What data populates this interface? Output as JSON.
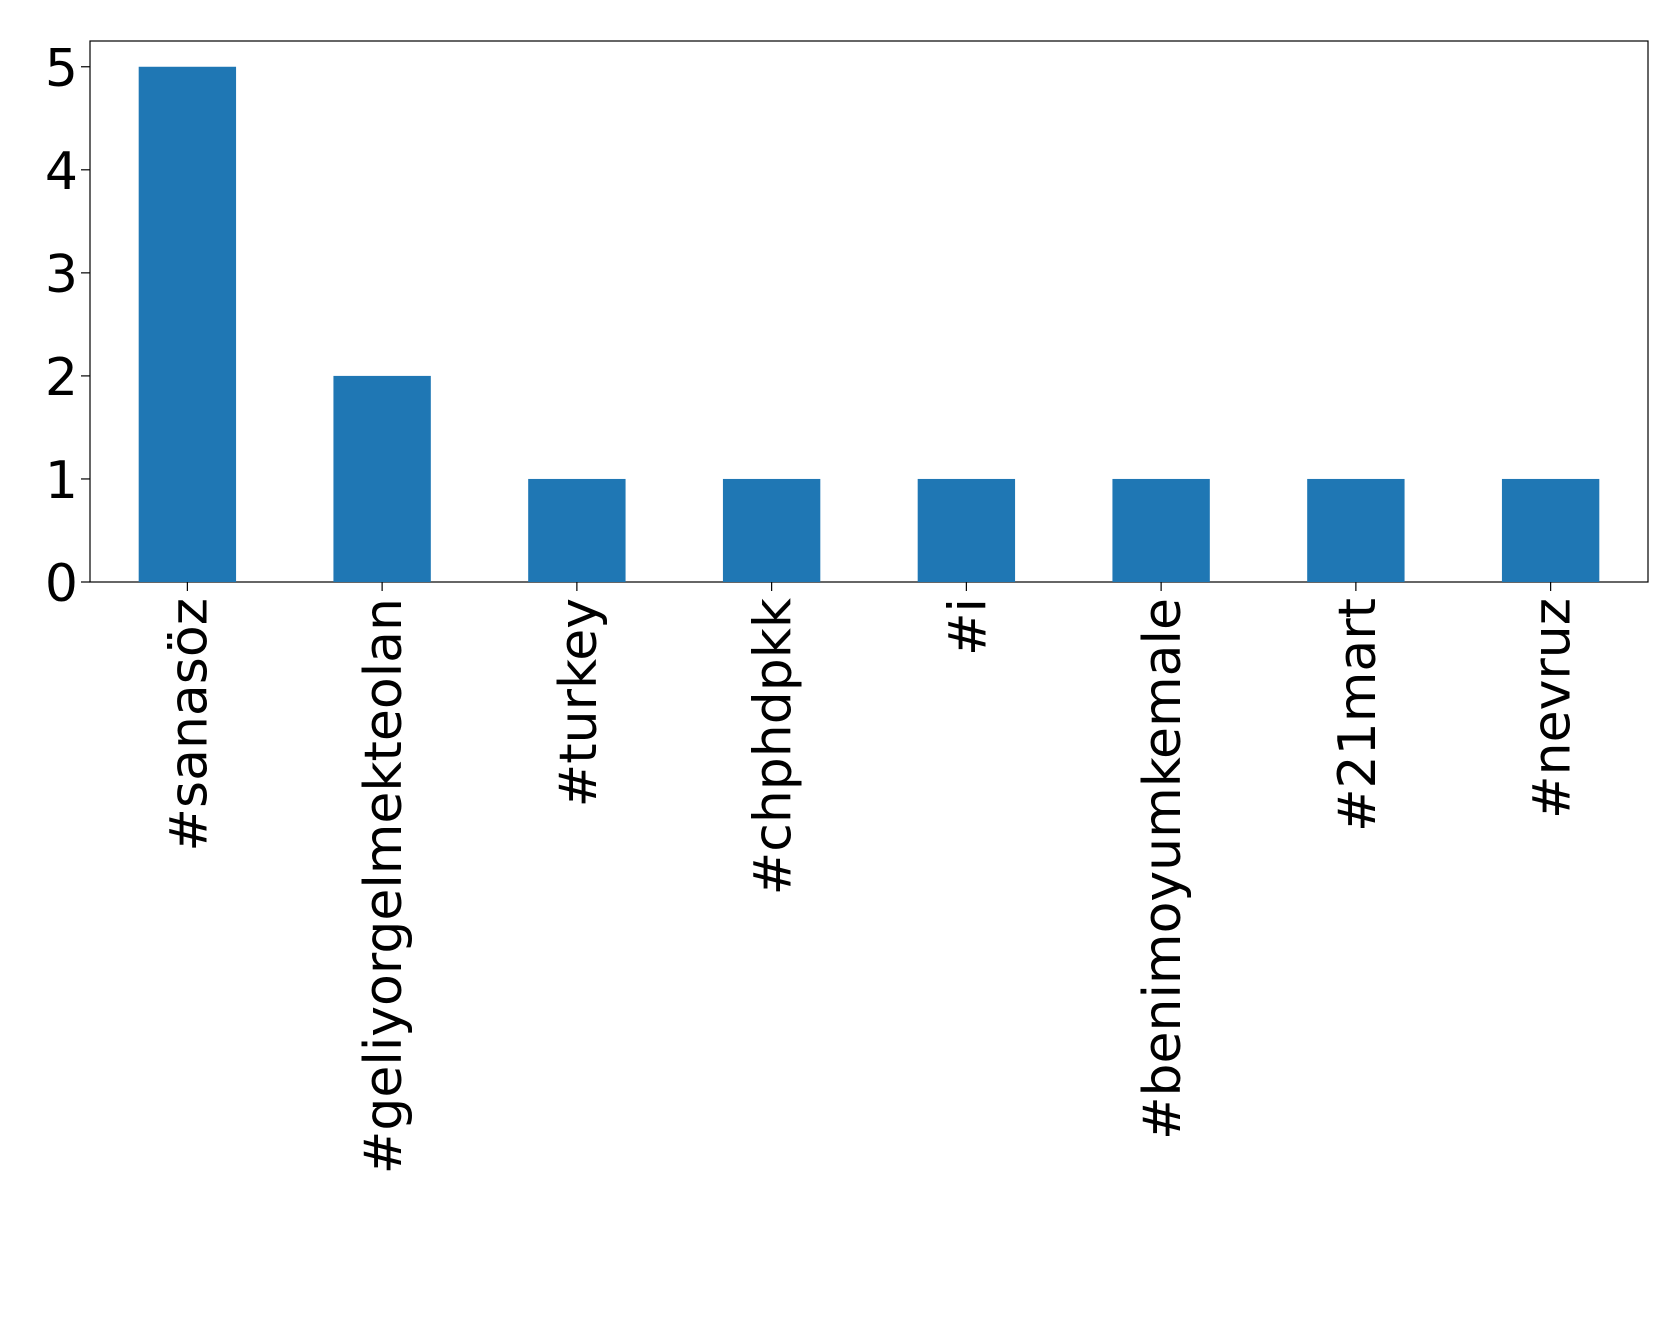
{
  "chart_data": {
    "type": "bar",
    "categories": [
      "#sanasöz",
      "#geliyorgelmekteolan",
      "#turkey",
      "#chphdpkk",
      "#i",
      "#benimoyumkemale",
      "#21mart",
      "#nevruz"
    ],
    "values": [
      5,
      2,
      1,
      1,
      1,
      1,
      1,
      1
    ],
    "color": "#1f77b4",
    "ylim": [
      0,
      5.25
    ],
    "yticks": [
      0,
      1,
      2,
      3,
      4,
      5
    ],
    "grid": false
  }
}
